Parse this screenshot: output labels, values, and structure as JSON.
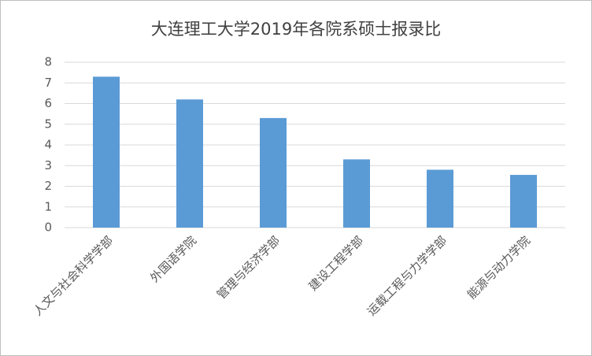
{
  "chart_data": {
    "type": "bar",
    "title": "大连理工大学2019年各院系硕士报录比",
    "categories": [
      "人文与社会科学学部",
      "外国语学院",
      "管理与经济学部",
      "建设工程学部",
      "运载工程与力学学部",
      "能源与动力学院"
    ],
    "values": [
      7.3,
      6.2,
      5.3,
      3.3,
      2.8,
      2.55
    ],
    "color": "#5b9bd5",
    "ylim": [
      0,
      8
    ],
    "yticks": [
      0,
      1,
      2,
      3,
      4,
      5,
      6,
      7,
      8
    ],
    "grid": true
  }
}
